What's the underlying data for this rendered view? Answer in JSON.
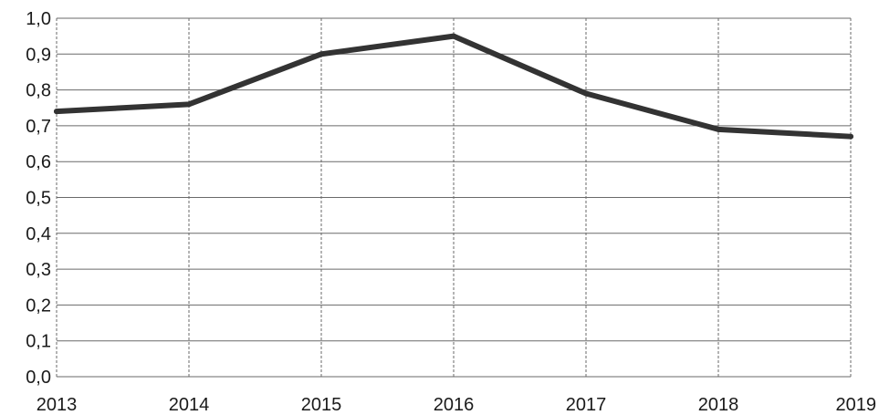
{
  "chart_data": {
    "type": "line",
    "title": "",
    "xlabel": "",
    "ylabel": "",
    "categories": [
      "2013",
      "2014",
      "2015",
      "2016",
      "2017",
      "2018",
      "2019"
    ],
    "series": [
      {
        "values": [
          0.74,
          0.76,
          0.9,
          0.95,
          0.79,
          0.69,
          0.67
        ]
      }
    ],
    "ylim": [
      0,
      1.0
    ],
    "yticks": [
      0.0,
      0.1,
      0.2,
      0.3,
      0.4,
      0.5,
      0.6,
      0.7,
      0.8,
      0.9,
      1.0
    ],
    "ytick_labels": [
      "0,0",
      "0,1",
      "0,2",
      "0,3",
      "0,4",
      "0,5",
      "0,6",
      "0,7",
      "0,8",
      "0,9",
      "1,0"
    ],
    "grid": true,
    "legend": "none",
    "colors": {
      "line": "#333333",
      "grid": "#6a6a6a"
    }
  }
}
